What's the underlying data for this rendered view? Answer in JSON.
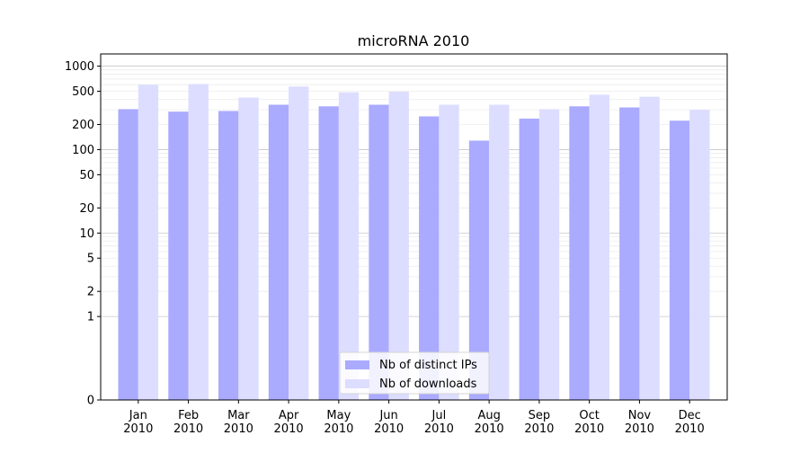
{
  "chart_data": {
    "type": "bar",
    "title": "microRNA 2010",
    "xlabel": "",
    "ylabel": "",
    "y_scale": "symlog",
    "ylim": [
      0,
      1400
    ],
    "yticks": [
      0,
      1,
      2,
      5,
      10,
      20,
      50,
      100,
      200,
      500,
      1000
    ],
    "ytick_labels": [
      "0",
      "1",
      "2",
      "5",
      "10",
      "20",
      "50",
      "100",
      "200",
      "500",
      "1000"
    ],
    "categories": [
      "Jan\n2010",
      "Feb\n2010",
      "Mar\n2010",
      "Apr\n2010",
      "May\n2010",
      "Jun\n2010",
      "Jul\n2010",
      "Aug\n2010",
      "Sep\n2010",
      "Oct\n2010",
      "Nov\n2010",
      "Dec\n2010"
    ],
    "category_lines": [
      [
        "Jan",
        "2010"
      ],
      [
        "Feb",
        "2010"
      ],
      [
        "Mar",
        "2010"
      ],
      [
        "Apr",
        "2010"
      ],
      [
        "May",
        "2010"
      ],
      [
        "Jun",
        "2010"
      ],
      [
        "Jul",
        "2010"
      ],
      [
        "Aug",
        "2010"
      ],
      [
        "Sep",
        "2010"
      ],
      [
        "Oct",
        "2010"
      ],
      [
        "Nov",
        "2010"
      ],
      [
        "Dec",
        "2010"
      ]
    ],
    "series": [
      {
        "name": "Nb of distinct IPs",
        "color": "#aaaaff",
        "values": [
          305,
          285,
          290,
          345,
          330,
          345,
          250,
          128,
          235,
          330,
          320,
          222
        ]
      },
      {
        "name": "Nb of downloads",
        "color": "#ddddff",
        "values": [
          600,
          610,
          420,
          570,
          485,
          495,
          345,
          345,
          305,
          455,
          430,
          300
        ]
      }
    ],
    "grid": true,
    "legend_position": "bottom-center"
  }
}
